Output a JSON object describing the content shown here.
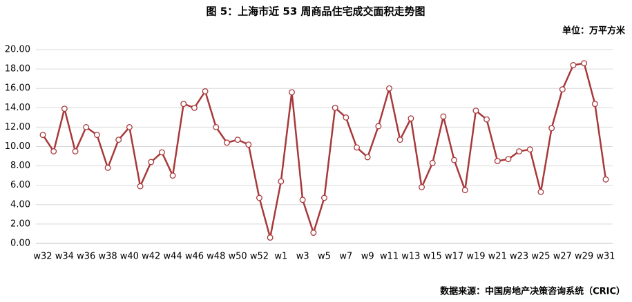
{
  "chart_data": {
    "type": "line",
    "title": "图 5：上海市近 53 周商品住宅成交面积走势图",
    "unit": "单位：万平方米",
    "source": "数据来源：中国房地产决策咨询系统（CRIC）",
    "categories": [
      "w32",
      null,
      "w34",
      null,
      "w36",
      null,
      "w38",
      null,
      "w40",
      null,
      "w42",
      null,
      "w44",
      null,
      "w46",
      null,
      "w48",
      null,
      "w50",
      null,
      "w52",
      null,
      "w1",
      null,
      "w3",
      null,
      "w5",
      null,
      "w7",
      null,
      "w9",
      null,
      "w11",
      null,
      "w13",
      null,
      "w15",
      null,
      "w17",
      null,
      "w19",
      null,
      "w21",
      null,
      "w23",
      null,
      "w25",
      null,
      "w27",
      null,
      "w29",
      null,
      "w31"
    ],
    "series": [
      {
        "name": "成交面积",
        "color": "#a8383a",
        "values": [
          11.2,
          9.5,
          13.9,
          9.5,
          12.0,
          11.2,
          7.8,
          10.7,
          12.0,
          5.9,
          8.4,
          9.4,
          7.0,
          14.4,
          14.0,
          15.7,
          12.0,
          10.4,
          10.7,
          10.2,
          4.7,
          0.6,
          6.4,
          15.6,
          4.5,
          1.1,
          4.7,
          14.0,
          13.0,
          9.9,
          8.9,
          12.1,
          16.0,
          10.7,
          12.9,
          5.8,
          8.3,
          13.1,
          8.6,
          5.5,
          13.7,
          12.8,
          8.5,
          8.7,
          9.5,
          9.7,
          5.3,
          11.9,
          15.9,
          18.4,
          18.6,
          14.4,
          6.6
        ]
      }
    ],
    "ylim": [
      0,
      20
    ],
    "yticks": [
      {
        "value": 0,
        "label": "0.00"
      },
      {
        "value": 2,
        "label": "2.00"
      },
      {
        "value": 4,
        "label": "4.00"
      },
      {
        "value": 6,
        "label": "6.00"
      },
      {
        "value": 8,
        "label": "8.00"
      },
      {
        "value": 10,
        "label": "10.00"
      },
      {
        "value": 12,
        "label": "12.00"
      },
      {
        "value": 14,
        "label": "14.00"
      },
      {
        "value": 16,
        "label": "16.00"
      },
      {
        "value": 18,
        "label": "18.00"
      },
      {
        "value": 20,
        "label": "20.00"
      }
    ],
    "grid": true
  }
}
